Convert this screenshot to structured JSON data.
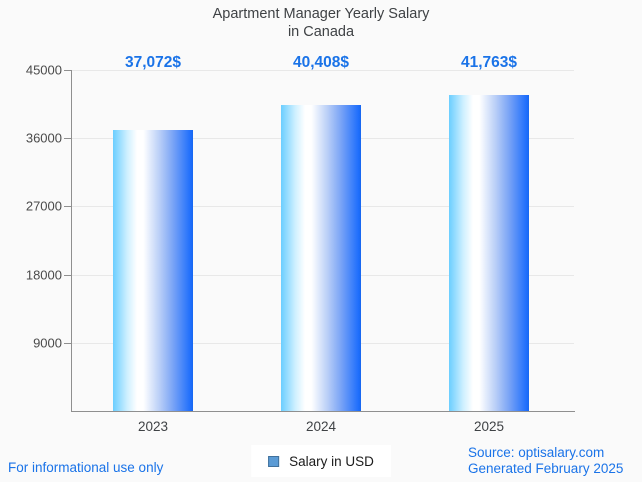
{
  "title": {
    "line1": "Apartment Manager Yearly Salary",
    "line2": "in Canada"
  },
  "chart_data": {
    "type": "bar",
    "categories": [
      "2023",
      "2024",
      "2025"
    ],
    "values": [
      37072,
      40408,
      41763
    ],
    "value_labels": [
      "37,072$",
      "40,408$",
      "41,763$"
    ],
    "yticks": [
      45000,
      36000,
      27000,
      18000,
      9000
    ],
    "ylim": [
      0,
      45000
    ],
    "grid": true,
    "legend_position": "bottom-center",
    "legend": [
      {
        "label": "Salary in USD",
        "swatch_color": "#5B9BD5",
        "swatch_border": "#41719C"
      }
    ],
    "bar_gradient": [
      "#6BCEFF",
      "#FFFFFF",
      "#1767EF"
    ],
    "value_label_color": "#1A73E8"
  },
  "footer": {
    "left": "For informational use only",
    "source": "Source: optisalary.com",
    "generated": "Generated February 2025",
    "link_color": "#1A73E8"
  }
}
